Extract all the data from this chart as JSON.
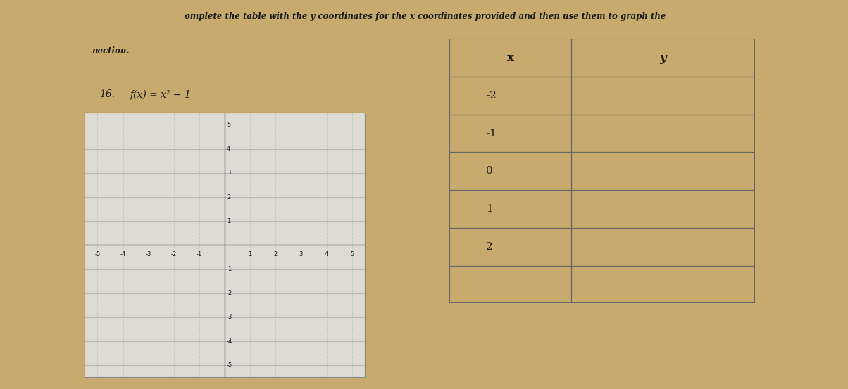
{
  "title_line1": "omplete the table with the y coordinates for the x coordinates provided and then use them to graph the",
  "title_line2": "nection.",
  "problem_number": "16.",
  "function_label": "f(x) = x² − 1",
  "bg_color": "#c8a96e",
  "paper_color": "#eceae3",
  "grid_bg_color": "#dddbd2",
  "table_bg_color": "#e8e6df",
  "grid_xlim": [
    -5.5,
    5.5
  ],
  "grid_ylim": [
    -5.5,
    5.5
  ],
  "grid_ticks": [
    -5,
    -4,
    -3,
    -2,
    -1,
    0,
    1,
    2,
    3,
    4,
    5
  ],
  "table_x_values": [
    "-2",
    "-1",
    "0",
    "1",
    "2"
  ],
  "table_headers": [
    "x",
    "y"
  ],
  "text_color": "#1a1a1a",
  "grid_line_color": "#aaaaaa",
  "axis_color": "#555555",
  "table_line_color": "#666666"
}
